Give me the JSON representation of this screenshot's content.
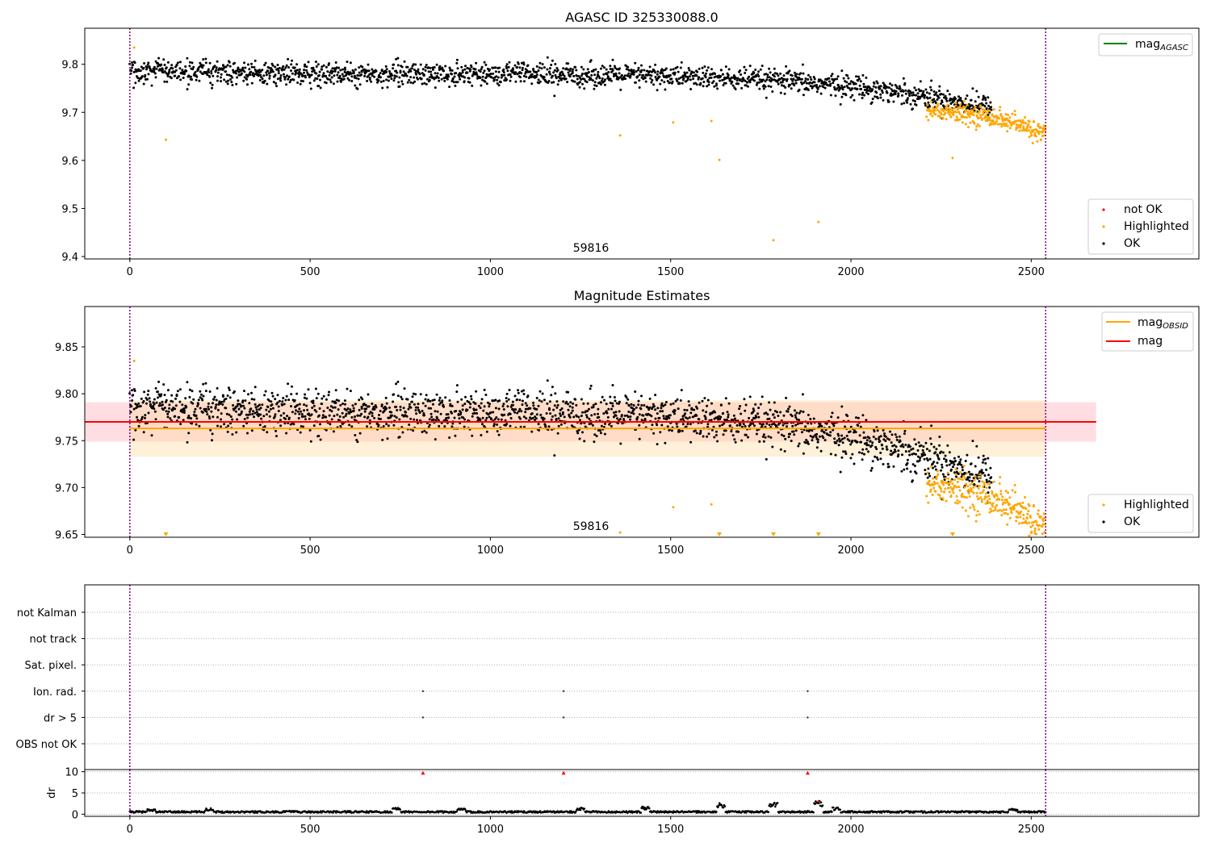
{
  "chart_data": [
    {
      "type": "scatter",
      "title": "AGASC ID 325330088.0",
      "xlim": [
        -125,
        2965
      ],
      "ylim": [
        9.395,
        9.875
      ],
      "xticks": [
        0,
        500,
        1000,
        1500,
        2000,
        2500
      ],
      "yticks": [
        9.4,
        9.5,
        9.6,
        9.7,
        9.8
      ],
      "ytick_labels": [
        "9.4",
        "9.5",
        "9.6",
        "9.7",
        "9.8"
      ],
      "vlines": [
        0,
        2540
      ],
      "annotation": {
        "text": "59816",
        "x": 1215,
        "y": 9.41
      },
      "legend_lines": [
        {
          "name": "mag_AGASC",
          "color": "#008000"
        }
      ],
      "legend_points": [
        {
          "name": "not OK",
          "color": "#ff0000"
        },
        {
          "name": "Highlighted",
          "color": "#ffa500"
        },
        {
          "name": "OK",
          "color": "#000000"
        }
      ],
      "series": [
        {
          "name": "OK",
          "color": "#000000",
          "trend": [
            [
              0,
              9.785
            ],
            [
              500,
              9.78
            ],
            [
              1000,
              9.78
            ],
            [
              1500,
              9.775
            ],
            [
              1800,
              9.765
            ],
            [
              2000,
              9.755
            ],
            [
              2200,
              9.735
            ],
            [
              2390,
              9.71
            ]
          ],
          "scatter": 0.012
        },
        {
          "name": "Highlighted",
          "color": "#ffa500",
          "trend": [
            [
              2210,
              9.705
            ],
            [
              2400,
              9.69
            ],
            [
              2540,
              9.655
            ]
          ],
          "scatter": 0.01,
          "outliers": [
            [
              12,
              9.835
            ],
            [
              100,
              9.643
            ],
            [
              1360,
              9.652
            ],
            [
              1507,
              9.679
            ],
            [
              1613,
              9.682
            ],
            [
              1635,
              9.601
            ],
            [
              1785,
              9.434
            ],
            [
              1910,
              9.472
            ],
            [
              2282,
              9.605
            ]
          ]
        }
      ]
    },
    {
      "type": "scatter",
      "title": "Magnitude Estimates",
      "xlim": [
        -125,
        2965
      ],
      "ylim": [
        9.647,
        9.893
      ],
      "xticks": [
        0,
        500,
        1000,
        1500,
        2000,
        2500
      ],
      "yticks": [
        9.65,
        9.7,
        9.75,
        9.8,
        9.85
      ],
      "ytick_labels": [
        "9.65",
        "9.70",
        "9.75",
        "9.80",
        "9.85"
      ],
      "vlines": [
        0,
        2540
      ],
      "annotation": {
        "text": "59816",
        "x": 1215,
        "y": 9.655
      },
      "bands": [
        {
          "name": "mag band",
          "color": "#ffb6c1",
          "x": [
            -125,
            2680
          ],
          "y": [
            9.749,
            9.791
          ]
        },
        {
          "name": "mag_OBSID band",
          "color": "#ffd9a0",
          "x": [
            0,
            2540
          ],
          "y": [
            9.733,
            9.793
          ]
        }
      ],
      "hlines": [
        {
          "name": "mag_OBSID",
          "color": "#ffa500",
          "y": 9.763,
          "x": [
            0,
            2540
          ]
        },
        {
          "name": "mag",
          "color": "#ff0000",
          "y": 9.77,
          "x": [
            -125,
            2680
          ]
        }
      ],
      "legend_lines": [
        {
          "name": "mag_OBSID",
          "color": "#ffa500"
        },
        {
          "name": "mag",
          "color": "#ff0000"
        }
      ],
      "legend_points": [
        {
          "name": "Highlighted",
          "color": "#ffa500"
        },
        {
          "name": "OK",
          "color": "#000000"
        }
      ],
      "clipped_markers_x": [
        100,
        1635,
        1785,
        1910,
        2282
      ],
      "series": [
        {
          "name": "OK",
          "color": "#000000",
          "trend": [
            [
              0,
              9.785
            ],
            [
              500,
              9.78
            ],
            [
              1000,
              9.78
            ],
            [
              1500,
              9.775
            ],
            [
              1800,
              9.765
            ],
            [
              2000,
              9.755
            ],
            [
              2200,
              9.735
            ],
            [
              2390,
              9.71
            ]
          ],
          "scatter": 0.012
        },
        {
          "name": "Highlighted",
          "color": "#ffa500",
          "trend": [
            [
              2210,
              9.705
            ],
            [
              2400,
              9.69
            ],
            [
              2540,
              9.655
            ]
          ],
          "scatter": 0.01,
          "outliers": [
            [
              12,
              9.835
            ],
            [
              1360,
              9.652
            ],
            [
              1507,
              9.679
            ],
            [
              1613,
              9.682
            ]
          ]
        }
      ]
    },
    {
      "type": "scatter",
      "title": "",
      "xlim": [
        -125,
        2965
      ],
      "categories": [
        "not Kalman",
        "not track",
        "Sat. pixel.",
        "Ion. rad.",
        "dr > 5",
        "OBS not OK"
      ],
      "vlines": [
        0,
        2540
      ],
      "flag_points": [
        {
          "category": "Ion. rad.",
          "x": [
            813,
            1203,
            1880
          ]
        },
        {
          "category": "dr > 5",
          "x": [
            813,
            1203,
            1880
          ]
        }
      ]
    },
    {
      "type": "line",
      "title": "",
      "ylabel": "dr",
      "xlim": [
        -125,
        2965
      ],
      "ylim": [
        -0.5,
        10.5
      ],
      "xticks": [
        0,
        500,
        1000,
        1500,
        2000,
        2500
      ],
      "yticks": [
        0,
        5,
        10
      ],
      "ytick_labels": [
        "0",
        "5",
        "10"
      ],
      "vlines": [
        0,
        2540
      ],
      "red_markers": [
        [
          813,
          9.7
        ],
        [
          1203,
          9.7
        ],
        [
          1880,
          9.7
        ]
      ],
      "bumps": [
        [
          60,
          1.2
        ],
        [
          220,
          1.4
        ],
        [
          450,
          0.8
        ],
        [
          740,
          1.6
        ],
        [
          920,
          1.4
        ],
        [
          1250,
          1.6
        ],
        [
          1430,
          1.8
        ],
        [
          1640,
          2.6
        ],
        [
          1785,
          2.8
        ],
        [
          1910,
          3.1
        ],
        [
          1960,
          1.6
        ],
        [
          2450,
          1.3
        ]
      ]
    }
  ]
}
